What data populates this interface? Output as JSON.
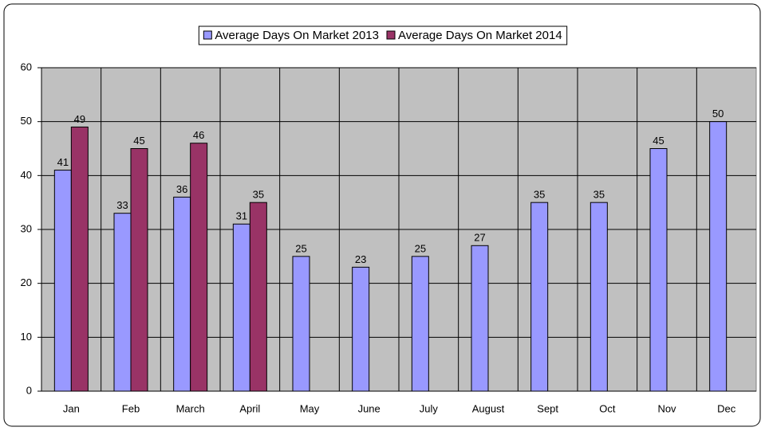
{
  "chart_data": {
    "type": "bar",
    "categories": [
      "Jan",
      "Feb",
      "March",
      "April",
      "May",
      "June",
      "July",
      "August",
      "Sept",
      "Oct",
      "Nov",
      "Dec"
    ],
    "series": [
      {
        "name": "Average Days On Market 2013",
        "color": "#9999ff",
        "values": [
          41,
          33,
          36,
          31,
          25,
          23,
          25,
          27,
          35,
          35,
          45,
          50
        ]
      },
      {
        "name": "Average Days On Market 2014",
        "color": "#993366",
        "values": [
          49,
          45,
          46,
          35,
          null,
          null,
          null,
          null,
          null,
          null,
          null,
          null
        ]
      }
    ],
    "ylim": [
      0,
      60
    ],
    "yticks": [
      0,
      10,
      20,
      30,
      40,
      50,
      60
    ],
    "grid": true,
    "legend": "top"
  }
}
